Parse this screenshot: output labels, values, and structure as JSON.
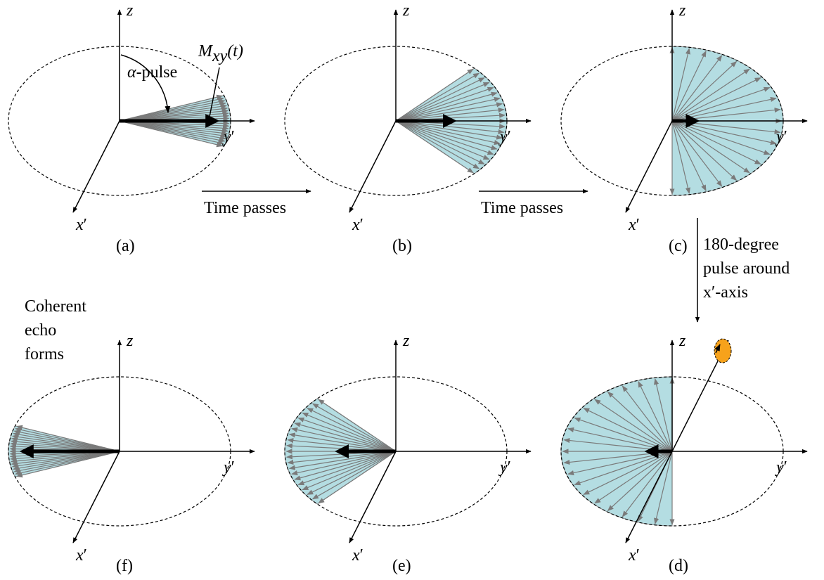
{
  "axis_labels": {
    "z": "z",
    "y": "y",
    "x": "x",
    "prime": "′"
  },
  "annotations": {
    "alpha_pulse": {
      "symbol": "α",
      "text": "-pulse"
    },
    "magnetization": {
      "main": "M",
      "sub": "xy",
      "arg": "(t)"
    }
  },
  "transitions": {
    "time_passes": "Time passes",
    "pulse_line1": "180-degree",
    "pulse_line2": "pulse around",
    "pulse_line3": "x′-axis"
  },
  "echo_label": {
    "line1": "Coherent",
    "line2": "echo",
    "line3": "forms"
  },
  "panels": [
    {
      "id": "a",
      "label": "(a)",
      "fan_from_deg": -20,
      "fan_to_deg": 20,
      "count": 21,
      "net_arrow": "right",
      "net_length": 0.9
    },
    {
      "id": "b",
      "label": "(b)",
      "fan_from_deg": -45,
      "fan_to_deg": 45,
      "count": 21,
      "net_arrow": "right",
      "net_length": 0.55
    },
    {
      "id": "c",
      "label": "(c)",
      "fan_from_deg": -90,
      "fan_to_deg": 90,
      "count": 21,
      "net_arrow": "right",
      "net_length": 0.25
    },
    {
      "id": "d",
      "label": "(d)",
      "fan_from_deg": -90,
      "fan_to_deg": 90,
      "count": 21,
      "net_arrow": "left",
      "net_length": 0.25,
      "pulse_marker": true
    },
    {
      "id": "e",
      "label": "(e)",
      "fan_from_deg": -45,
      "fan_to_deg": 45,
      "count": 21,
      "net_arrow": "left",
      "net_length": 0.55
    },
    {
      "id": "f",
      "label": "(f)",
      "fan_from_deg": -20,
      "fan_to_deg": 20,
      "count": 21,
      "net_arrow": "left",
      "net_length": 0.9
    }
  ],
  "colors": {
    "fan_fill": "#b4dde2",
    "vector": "#7a7a7a",
    "axis": "#000000",
    "marker": "#f7a21b"
  }
}
